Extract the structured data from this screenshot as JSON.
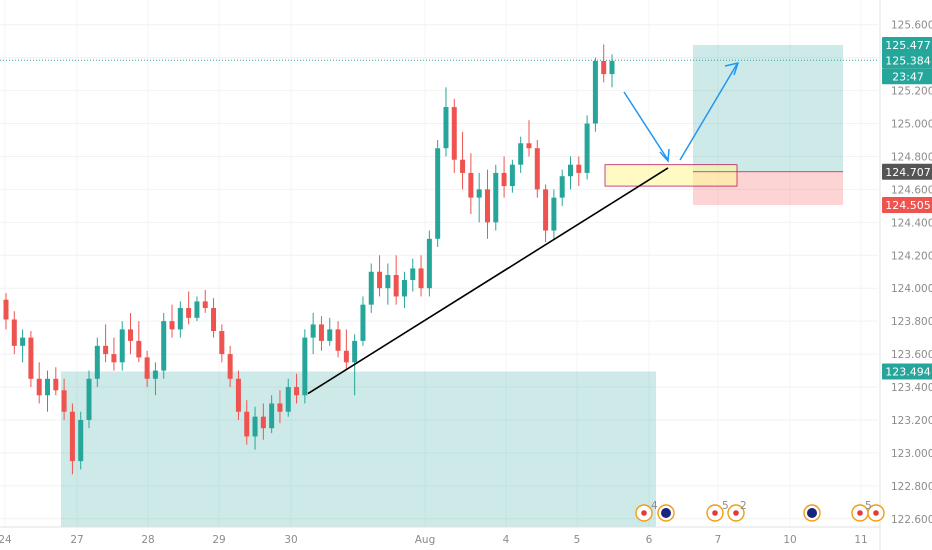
{
  "chart_data": {
    "type": "candlestick",
    "y_axis": {
      "range": [
        122.55,
        125.75
      ],
      "ticks": [
        "125.600",
        "125.400",
        "125.200",
        "125.000",
        "124.800",
        "124.600",
        "124.400",
        "124.200",
        "124.000",
        "123.800",
        "123.600",
        "123.400",
        "123.200",
        "123.000",
        "122.800",
        "122.600"
      ],
      "tick_values": [
        125.6,
        125.4,
        125.2,
        125.0,
        124.8,
        124.6,
        124.4,
        124.2,
        124.0,
        123.8,
        123.6,
        123.4,
        123.2,
        123.0,
        122.8,
        122.6
      ]
    },
    "x_axis": {
      "labels": [
        "24",
        "27",
        "28",
        "29",
        "30",
        "Aug",
        "4",
        "5",
        "6",
        "7",
        "10",
        "11"
      ]
    },
    "price_tags": [
      {
        "value": "125.477",
        "color": "#26a69a",
        "price": 125.477
      },
      {
        "value": "125.384",
        "color": "#26a69a",
        "price": 125.384
      },
      {
        "value": "23:47",
        "color": "#26a69a",
        "sub_of": 125.384
      },
      {
        "value": "124.707",
        "color": "#555555",
        "price": 124.707
      },
      {
        "value": "124.505",
        "color": "#ef5350",
        "price": 124.505
      },
      {
        "value": "123.494",
        "color": "#26a69a",
        "price": 123.494
      }
    ],
    "zones": [
      {
        "name": "demand zone",
        "price_low": 122.55,
        "price_high": 123.494,
        "color": "#26a69a"
      },
      {
        "name": "target zone",
        "price_low": 124.707,
        "price_high": 125.477,
        "color": "#26a69a"
      },
      {
        "name": "stop zone",
        "price_low": 124.505,
        "price_high": 124.707,
        "color": "#ef5350"
      },
      {
        "name": "entry zone",
        "price_low": 124.62,
        "price_high": 124.75,
        "color": "#fff59d"
      }
    ],
    "trendline": {
      "from": {
        "bar": 0.33,
        "price": 123.36
      },
      "to": {
        "bar": 0.72,
        "price": 124.73
      }
    },
    "current_price_line": 125.384,
    "colors": {
      "up": "#26a69a",
      "down": "#ef5350",
      "arrow": "#2196f3"
    },
    "candles": [
      [
        123.93,
        123.97,
        123.75,
        123.81
      ],
      [
        123.81,
        123.86,
        123.6,
        123.65
      ],
      [
        123.65,
        123.75,
        123.55,
        123.7
      ],
      [
        123.7,
        123.74,
        123.4,
        123.45
      ],
      [
        123.45,
        123.55,
        123.3,
        123.35
      ],
      [
        123.35,
        123.5,
        123.25,
        123.45
      ],
      [
        123.45,
        123.52,
        123.35,
        123.38
      ],
      [
        123.38,
        123.45,
        123.2,
        123.25
      ],
      [
        123.25,
        123.3,
        122.87,
        122.95
      ],
      [
        122.95,
        123.25,
        122.9,
        123.2
      ],
      [
        123.2,
        123.5,
        123.15,
        123.45
      ],
      [
        123.45,
        123.7,
        123.4,
        123.65
      ],
      [
        123.65,
        123.78,
        123.55,
        123.6
      ],
      [
        123.6,
        123.7,
        123.5,
        123.55
      ],
      [
        123.55,
        123.8,
        123.5,
        123.75
      ],
      [
        123.75,
        123.85,
        123.6,
        123.68
      ],
      [
        123.68,
        123.8,
        123.55,
        123.58
      ],
      [
        123.58,
        123.62,
        123.4,
        123.45
      ],
      [
        123.45,
        123.55,
        123.35,
        123.5
      ],
      [
        123.5,
        123.85,
        123.45,
        123.8
      ],
      [
        123.8,
        123.9,
        123.7,
        123.75
      ],
      [
        123.75,
        123.92,
        123.7,
        123.88
      ],
      [
        123.88,
        123.98,
        123.78,
        123.82
      ],
      [
        123.82,
        123.95,
        123.8,
        123.92
      ],
      [
        123.92,
        123.99,
        123.85,
        123.88
      ],
      [
        123.88,
        123.94,
        123.7,
        123.74
      ],
      [
        123.74,
        123.78,
        123.55,
        123.6
      ],
      [
        123.6,
        123.65,
        123.4,
        123.45
      ],
      [
        123.45,
        123.5,
        123.2,
        123.25
      ],
      [
        123.25,
        123.32,
        123.05,
        123.1
      ],
      [
        123.1,
        123.28,
        123.02,
        123.22
      ],
      [
        123.22,
        123.3,
        123.08,
        123.15
      ],
      [
        123.15,
        123.35,
        123.12,
        123.3
      ],
      [
        123.3,
        123.38,
        123.18,
        123.25
      ],
      [
        123.25,
        123.45,
        123.22,
        123.4
      ],
      [
        123.4,
        123.48,
        123.3,
        123.35
      ],
      [
        123.35,
        123.75,
        123.3,
        123.7
      ],
      [
        123.7,
        123.85,
        123.6,
        123.78
      ],
      [
        123.78,
        123.83,
        123.62,
        123.68
      ],
      [
        123.68,
        123.82,
        123.65,
        123.75
      ],
      [
        123.75,
        123.8,
        123.58,
        123.62
      ],
      [
        123.62,
        123.75,
        123.5,
        123.55
      ],
      [
        123.55,
        123.72,
        123.35,
        123.68
      ],
      [
        123.68,
        123.95,
        123.65,
        123.9
      ],
      [
        123.9,
        124.15,
        123.85,
        124.1
      ],
      [
        124.1,
        124.2,
        123.95,
        124.0
      ],
      [
        124.0,
        124.15,
        123.9,
        124.08
      ],
      [
        124.08,
        124.2,
        123.9,
        123.95
      ],
      [
        123.95,
        124.1,
        123.88,
        124.05
      ],
      [
        124.05,
        124.18,
        123.98,
        124.12
      ],
      [
        124.12,
        124.2,
        123.95,
        124.0
      ],
      [
        124.0,
        124.35,
        123.95,
        124.3
      ],
      [
        124.3,
        124.9,
        124.25,
        124.85
      ],
      [
        124.85,
        125.22,
        124.8,
        125.1
      ],
      [
        125.1,
        125.15,
        124.7,
        124.78
      ],
      [
        124.78,
        124.95,
        124.6,
        124.7
      ],
      [
        124.7,
        124.82,
        124.45,
        124.55
      ],
      [
        124.55,
        124.7,
        124.4,
        124.6
      ],
      [
        124.6,
        124.72,
        124.3,
        124.4
      ],
      [
        124.4,
        124.75,
        124.35,
        124.7
      ],
      [
        124.7,
        124.8,
        124.55,
        124.62
      ],
      [
        124.62,
        124.78,
        124.58,
        124.75
      ],
      [
        124.75,
        124.92,
        124.7,
        124.88
      ],
      [
        124.88,
        125.02,
        124.8,
        124.85
      ],
      [
        124.85,
        124.9,
        124.55,
        124.6
      ],
      [
        124.6,
        124.63,
        124.28,
        124.35
      ],
      [
        124.35,
        124.6,
        124.3,
        124.55
      ],
      [
        124.55,
        124.72,
        124.5,
        124.68
      ],
      [
        124.68,
        124.8,
        124.6,
        124.75
      ],
      [
        124.75,
        124.8,
        124.62,
        124.7
      ],
      [
        124.7,
        125.05,
        124.66,
        125.0
      ],
      [
        125.0,
        125.4,
        124.95,
        125.38
      ],
      [
        125.38,
        125.48,
        125.25,
        125.3
      ],
      [
        125.3,
        125.42,
        125.22,
        125.38
      ]
    ]
  },
  "events": [
    "4",
    "5",
    "2",
    "5"
  ]
}
